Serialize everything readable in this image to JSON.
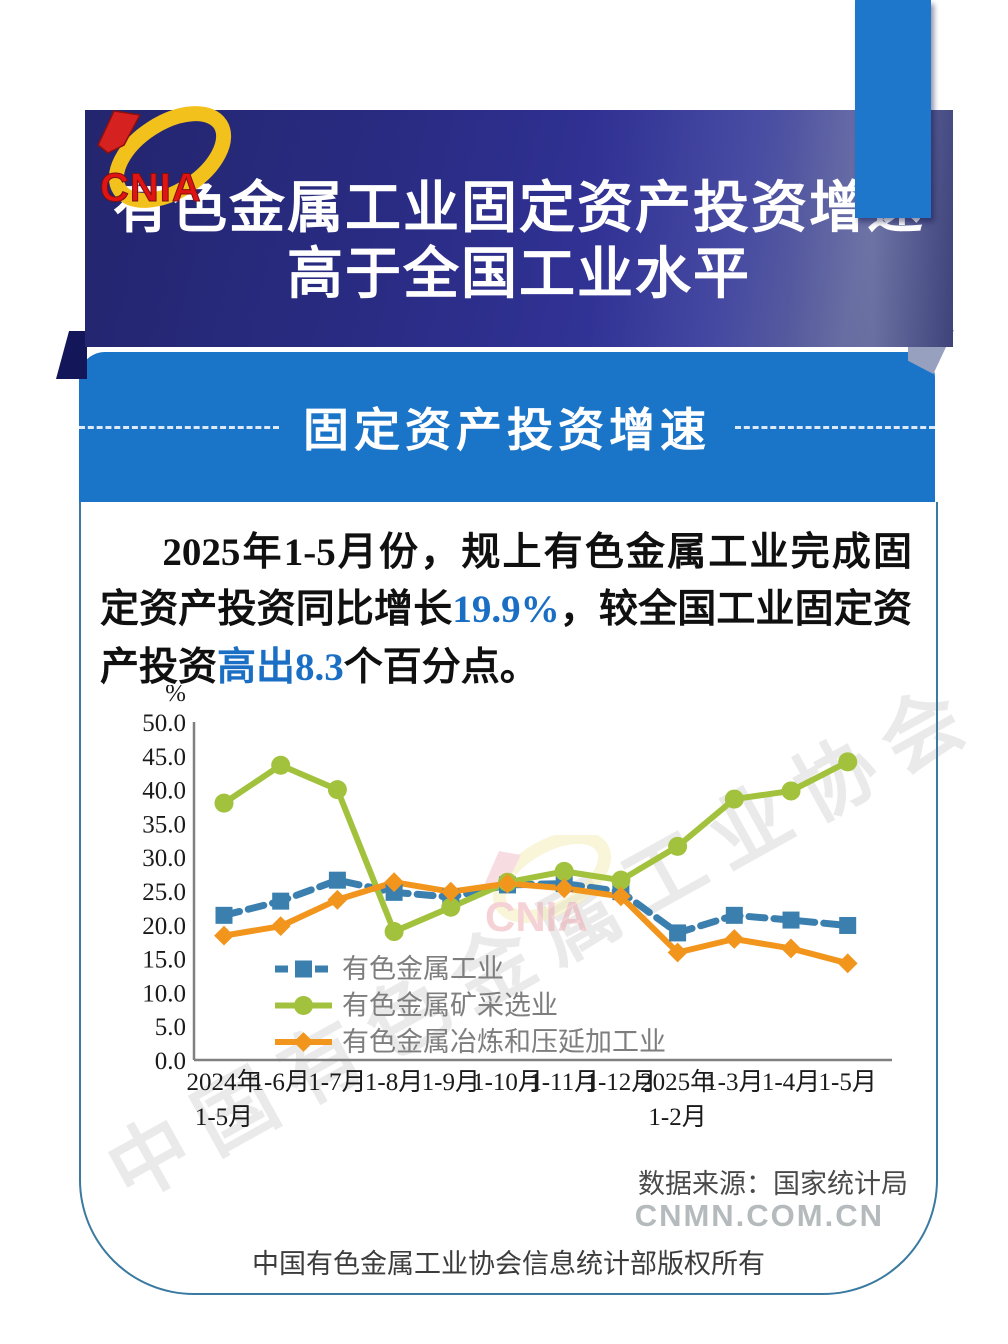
{
  "logo": {
    "text": "CNIA"
  },
  "header": {
    "title_line1": "有色金属工业固定资产投资增速",
    "title_line2": "高于全国工业水平",
    "bg": "#2b2d8a"
  },
  "banner": {
    "title": "固定资产投资增速",
    "bg": "#1a74c8"
  },
  "body_text": {
    "seg1": "2025年1-5月份，规上有色金属工业完成固定资产投资同比增长",
    "highlight1": "19.9%",
    "seg2": "，较全国工业固定资产投资",
    "highlight2": "高出8.3",
    "seg3": "个百分点。",
    "highlight_color": "#1a6fc4"
  },
  "chart_data": {
    "type": "line",
    "unit_label": "%",
    "categories": [
      "2024年\n1-5月",
      "1-6月",
      "1-7月",
      "1-8月",
      "1-9月",
      "1-10月",
      "1-11月",
      "1-12月",
      "2025年\n1-2月",
      "1-3月",
      "1-4月",
      "1-5月"
    ],
    "series": [
      {
        "name": "有色金属工业",
        "color": "#3a7fae",
        "style": "dashed",
        "marker": "square",
        "values": [
          21.4,
          23.5,
          26.6,
          24.8,
          24.1,
          25.9,
          26.1,
          24.9,
          18.8,
          21.4,
          20.7,
          19.9
        ]
      },
      {
        "name": "有色金属矿采选业",
        "color": "#a2c13c",
        "style": "solid",
        "marker": "circle",
        "values": [
          38.0,
          43.6,
          40.0,
          19.0,
          22.6,
          26.3,
          27.9,
          26.6,
          31.6,
          38.6,
          39.8,
          44.1
        ]
      },
      {
        "name": "有色金属冶炼和压延加工业",
        "color": "#f2951d",
        "style": "solid",
        "marker": "diamond",
        "values": [
          18.4,
          19.8,
          23.7,
          26.3,
          24.9,
          26.1,
          25.4,
          24.2,
          15.9,
          17.9,
          16.5,
          14.3
        ]
      }
    ],
    "ylim": [
      0,
      50
    ],
    "ytick_step": 5,
    "grid": false,
    "legend_position": "inside-bottom-left",
    "axis_color": "#808080",
    "tick_label_color": "#1a1a1a",
    "legend_text_color": "#7e7e7e"
  },
  "watermarks": {
    "diagonal": "中国有色金属工业协会",
    "site": "CNMN.COM.CN",
    "cnia": "CNIA"
  },
  "source": {
    "label": "数据来源：国家统计局"
  },
  "footer": {
    "copyright": "中国有色金属工业协会信息统计部版权所有"
  }
}
